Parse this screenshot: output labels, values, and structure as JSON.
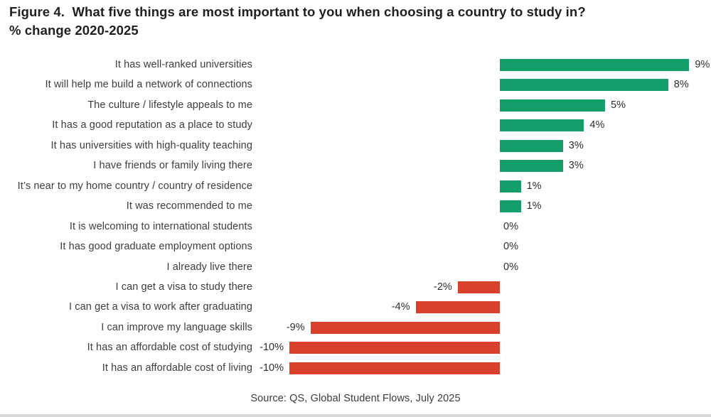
{
  "title": {
    "line1": "Figure 4.  What five things are most important to you when choosing a country to study in?",
    "line2": "% change 2020-2025"
  },
  "source": "Source: QS, Global Student Flows, July 2025",
  "colors": {
    "positive_bar": "#149e6a",
    "negative_bar": "#d8402c",
    "category_text": "#3d3d3d",
    "value_text": "#2e2e2e",
    "title_text": "#1f1f1f"
  },
  "chart_data": {
    "type": "bar",
    "orientation": "horizontal",
    "title": "Figure 4. What five things are most important to you when choosing a country to study in? % change 2020-2025",
    "xlabel": "",
    "ylabel": "",
    "xlim": [
      -10,
      10
    ],
    "grid": false,
    "legend": false,
    "categories": [
      "It has well-ranked universities",
      "It will help me build a network of connections",
      "The culture / lifestyle appeals to me",
      "It has a good reputation as a place to study",
      "It has universities with high-quality teaching",
      "I have friends or family living there",
      "It’s near to my home country / country of residence",
      "It was recommended to me",
      "It is welcoming to international students",
      "It has good graduate employment options",
      "I already live there",
      "I can get a visa to study there",
      "I can get a visa to work after graduating",
      "I can improve my language skills",
      "It has an affordable cost of studying",
      "It has an affordable cost of living"
    ],
    "values": [
      9,
      8,
      5,
      4,
      3,
      3,
      1,
      1,
      0,
      0,
      0,
      -2,
      -4,
      -9,
      -10,
      -10
    ],
    "value_labels": [
      "9%",
      "8%",
      "5%",
      "4%",
      "3%",
      "3%",
      "1%",
      "1%",
      "0%",
      "0%",
      "0%",
      "-2%",
      "-4%",
      "-9%",
      "-10%",
      "-10%"
    ]
  }
}
